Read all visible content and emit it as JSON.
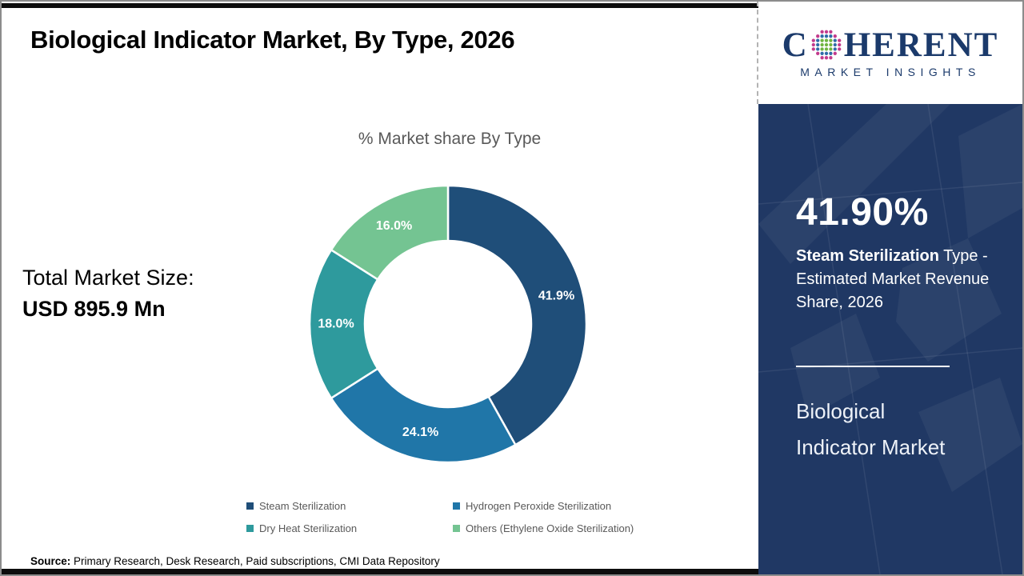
{
  "header": {
    "title": "Biological Indicator Market, By Type, 2026",
    "logo": {
      "brand_c": "C",
      "brand_rest": "HERENT",
      "subtitle": "MARKET INSIGHTS"
    }
  },
  "left_stat": {
    "label": "Total Market Size:",
    "value": "USD 895.9 Mn"
  },
  "chart_data": {
    "type": "pie",
    "donut": true,
    "title": "% Market share By Type",
    "labels": [
      "Steam Sterilization",
      "Hydrogen Peroxide Sterilization",
      "Dry Heat Sterilization",
      "Others (Ethylene Oxide Sterilization)"
    ],
    "values": [
      41.9,
      24.1,
      18.0,
      16.0
    ],
    "value_labels": [
      "41.9%",
      "24.1%",
      "18.0%",
      "16.0%"
    ],
    "colors": [
      "#1F4E79",
      "#2076A8",
      "#2E9A9D",
      "#74C492"
    ],
    "start_angle_deg": 0,
    "direction": "clockwise",
    "legend_position": "bottom"
  },
  "sidebar": {
    "headline_value": "41.90%",
    "description_bold": "Steam Sterilization",
    "description_rest": " Type - Estimated Market Revenue Share, 2026",
    "market_name_line1": "Biological",
    "market_name_line2": "Indicator Market"
  },
  "footer": {
    "source_label": "Source:",
    "source_text": " Primary Research, Desk Research, Paid subscriptions, CMI Data Repository"
  },
  "colors": {
    "panel_blue": "#203864",
    "logo_navy": "#1b3a6b",
    "muted_text": "#595959",
    "bar_black": "#0d0d0d"
  }
}
